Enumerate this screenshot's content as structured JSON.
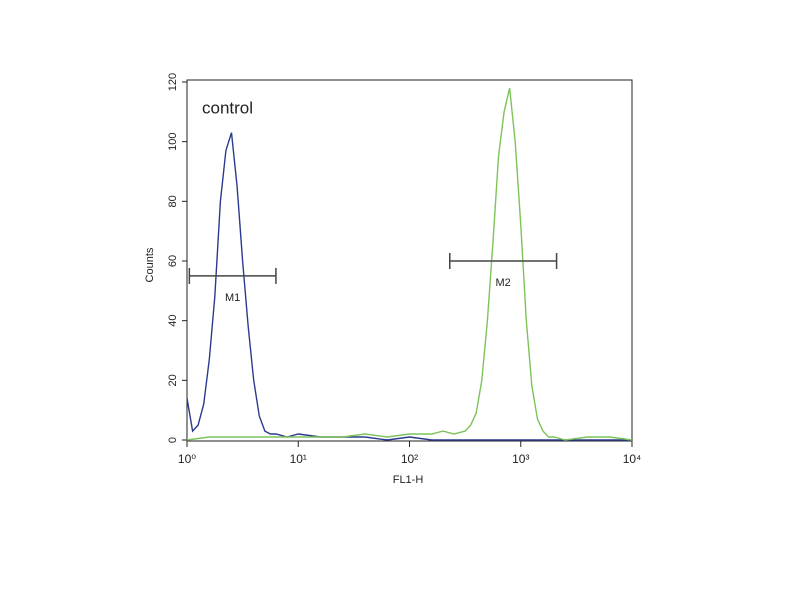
{
  "chart_data": {
    "type": "line",
    "annotation": "control",
    "xlabel": "FL1-H",
    "ylabel": "Counts",
    "xlog": true,
    "xlim": [
      1,
      10000
    ],
    "xticks": [
      {
        "value": 1,
        "label": "10⁰"
      },
      {
        "value": 10,
        "label": "10¹"
      },
      {
        "value": 100,
        "label": "10²"
      },
      {
        "value": 1000,
        "label": "10³"
      },
      {
        "value": 10000,
        "label": "10⁴"
      }
    ],
    "ylim": [
      0,
      120
    ],
    "yticks": [
      0,
      20,
      40,
      60,
      80,
      100,
      120
    ],
    "series": [
      {
        "color": "#2b3a8f",
        "x": [
          1,
          1.122,
          1.259,
          1.413,
          1.585,
          1.778,
          1.995,
          2.239,
          2.512,
          2.818,
          3.162,
          3.548,
          3.981,
          4.467,
          5.012,
          5.623,
          6.31,
          7.943,
          10,
          15.85,
          25.12,
          39.81,
          63.1,
          100,
          158.5,
          251.2,
          398.1,
          631,
          1000,
          1585,
          2512,
          3981,
          10000
        ],
        "values": [
          14,
          3,
          5,
          12,
          27,
          48,
          80,
          97,
          103,
          85,
          60,
          38,
          20,
          8,
          3,
          2,
          2,
          1,
          2,
          1,
          1,
          1,
          0,
          1,
          0,
          0,
          0,
          0,
          0,
          0,
          0,
          0,
          0
        ]
      },
      {
        "color": "#7cc35a",
        "x": [
          1,
          1.585,
          2.512,
          3.981,
          6.31,
          10,
          15.85,
          25.12,
          39.81,
          63.1,
          100,
          158.5,
          199.5,
          251.2,
          316.2,
          354.8,
          398.1,
          446.7,
          501.2,
          562.3,
          631,
          707.9,
          794.3,
          891.3,
          1000,
          1122,
          1259,
          1413,
          1585,
          1778,
          1995,
          2512,
          3981,
          6310,
          10000
        ],
        "values": [
          0,
          1,
          1,
          1,
          1,
          1,
          1,
          1,
          2,
          1,
          2,
          2,
          3,
          2,
          3,
          5,
          9,
          20,
          40,
          66,
          95,
          110,
          118,
          100,
          72,
          40,
          18,
          7,
          3,
          1,
          1,
          0,
          1,
          1,
          0
        ]
      }
    ],
    "markers": [
      {
        "label": "M1",
        "x": [
          1.05,
          6.3
        ],
        "y": 55
      },
      {
        "label": "M2",
        "x": [
          230,
          2100
        ],
        "y": 60
      }
    ]
  }
}
